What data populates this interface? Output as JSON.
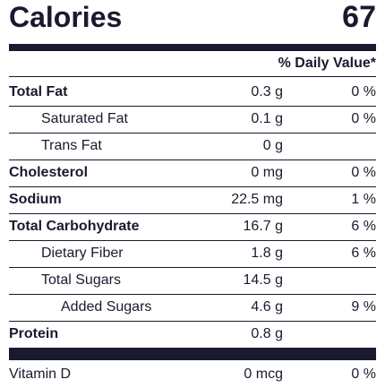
{
  "calories": {
    "label": "Calories",
    "value": "67"
  },
  "daily_value_header": "% Daily Value*",
  "rows": [
    {
      "name": "Total Fat",
      "amount": "0.3 g",
      "dv": "0 %",
      "bold": true,
      "indent": 0
    },
    {
      "name": "Saturated Fat",
      "amount": "0.1 g",
      "dv": "0 %",
      "bold": false,
      "indent": 1
    },
    {
      "name": "Trans Fat",
      "amount": "0 g",
      "dv": "",
      "bold": false,
      "indent": 1
    },
    {
      "name": "Cholesterol",
      "amount": "0 mg",
      "dv": "0 %",
      "bold": true,
      "indent": 0
    },
    {
      "name": "Sodium",
      "amount": "22.5 mg",
      "dv": "1 %",
      "bold": true,
      "indent": 0
    },
    {
      "name": "Total Carbohydrate",
      "amount": "16.7 g",
      "dv": "6 %",
      "bold": true,
      "indent": 0
    },
    {
      "name": "Dietary Fiber",
      "amount": "1.8 g",
      "dv": "6 %",
      "bold": false,
      "indent": 1
    },
    {
      "name": "Total Sugars",
      "amount": "14.5 g",
      "dv": "",
      "bold": false,
      "indent": 1
    },
    {
      "name": "Added Sugars",
      "amount": "4.6 g",
      "dv": "9 %",
      "bold": false,
      "indent": 2
    },
    {
      "name": "Protein",
      "amount": "0.8 g",
      "dv": "",
      "bold": true,
      "indent": 0
    }
  ],
  "vitamins": [
    {
      "name": "Vitamin D",
      "amount": "0 mcg",
      "dv": "0 %"
    }
  ]
}
